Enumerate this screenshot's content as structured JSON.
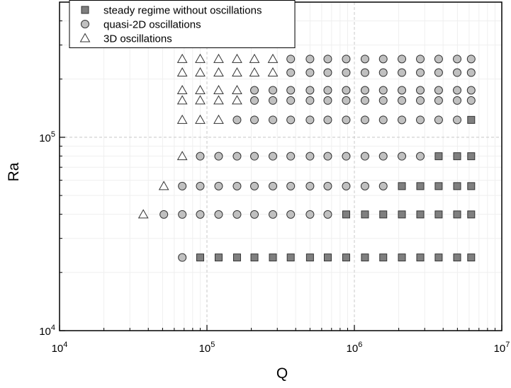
{
  "chart_data": {
    "type": "scatter",
    "title": "",
    "xlabel": "Q",
    "ylabel": "Ra",
    "xscale": "log",
    "yscale": "log",
    "xlim": [
      10000,
      10000000
    ],
    "ylim": [
      10000,
      500000
    ],
    "x_ticks": [
      {
        "value": 10000,
        "base": "10",
        "exp": "4"
      },
      {
        "value": 100000,
        "base": "10",
        "exp": "5"
      },
      {
        "value": 1000000,
        "base": "10",
        "exp": "6"
      },
      {
        "value": 10000000,
        "base": "10",
        "exp": "7"
      }
    ],
    "y_ticks": [
      {
        "value": 10000,
        "base": "10",
        "exp": "4"
      },
      {
        "value": 100000,
        "base": "10",
        "exp": "5"
      }
    ],
    "grid": true,
    "legend_position": "top-left",
    "series": [
      {
        "name": "steady regime without oscillations",
        "marker": "square",
        "color": "#7f7f7f",
        "points": [
          [
            90000,
            23900
          ],
          [
            120000,
            23900
          ],
          [
            160000,
            23900
          ],
          [
            210000,
            23900
          ],
          [
            280000,
            23900
          ],
          [
            370000,
            23900
          ],
          [
            500000,
            23900
          ],
          [
            660000,
            23900
          ],
          [
            880000,
            23900
          ],
          [
            1180000,
            23900
          ],
          [
            1570000,
            23900
          ],
          [
            2100000,
            23900
          ],
          [
            2800000,
            23900
          ],
          [
            3730000,
            23900
          ],
          [
            4980000,
            23900
          ],
          [
            6200000,
            23900
          ],
          [
            880000,
            39900
          ],
          [
            1180000,
            39900
          ],
          [
            1570000,
            39900
          ],
          [
            2100000,
            39900
          ],
          [
            2800000,
            39900
          ],
          [
            3730000,
            39900
          ],
          [
            4980000,
            39900
          ],
          [
            6200000,
            39900
          ],
          [
            2100000,
            55900
          ],
          [
            2800000,
            55900
          ],
          [
            3730000,
            55900
          ],
          [
            4980000,
            55900
          ],
          [
            6200000,
            55900
          ],
          [
            3730000,
            79800
          ],
          [
            4980000,
            79800
          ],
          [
            6200000,
            79800
          ],
          [
            6200000,
            123000
          ]
        ]
      },
      {
        "name": "quasi-2D oscillations",
        "marker": "circle",
        "color": "#c0c0c0",
        "points": [
          [
            68000,
            23900
          ],
          [
            51000,
            39900
          ],
          [
            68000,
            39900
          ],
          [
            90000,
            39900
          ],
          [
            120000,
            39900
          ],
          [
            160000,
            39900
          ],
          [
            210000,
            39900
          ],
          [
            280000,
            39900
          ],
          [
            370000,
            39900
          ],
          [
            500000,
            39900
          ],
          [
            660000,
            39900
          ],
          [
            68000,
            55900
          ],
          [
            90000,
            55900
          ],
          [
            120000,
            55900
          ],
          [
            160000,
            55900
          ],
          [
            210000,
            55900
          ],
          [
            280000,
            55900
          ],
          [
            370000,
            55900
          ],
          [
            500000,
            55900
          ],
          [
            660000,
            55900
          ],
          [
            880000,
            55900
          ],
          [
            1180000,
            55900
          ],
          [
            1570000,
            55900
          ],
          [
            90000,
            79800
          ],
          [
            120000,
            79800
          ],
          [
            160000,
            79800
          ],
          [
            210000,
            79800
          ],
          [
            280000,
            79800
          ],
          [
            370000,
            79800
          ],
          [
            500000,
            79800
          ],
          [
            660000,
            79800
          ],
          [
            880000,
            79800
          ],
          [
            1180000,
            79800
          ],
          [
            1570000,
            79800
          ],
          [
            2100000,
            79800
          ],
          [
            2800000,
            79800
          ],
          [
            160000,
            123000
          ],
          [
            210000,
            123000
          ],
          [
            280000,
            123000
          ],
          [
            370000,
            123000
          ],
          [
            500000,
            123000
          ],
          [
            660000,
            123000
          ],
          [
            880000,
            123000
          ],
          [
            1180000,
            123000
          ],
          [
            1570000,
            123000
          ],
          [
            2100000,
            123000
          ],
          [
            2800000,
            123000
          ],
          [
            3730000,
            123000
          ],
          [
            4980000,
            123000
          ],
          [
            210000,
            155000
          ],
          [
            280000,
            155000
          ],
          [
            370000,
            155000
          ],
          [
            500000,
            155000
          ],
          [
            660000,
            155000
          ],
          [
            880000,
            155000
          ],
          [
            1180000,
            155000
          ],
          [
            1570000,
            155000
          ],
          [
            2100000,
            155000
          ],
          [
            2800000,
            155000
          ],
          [
            3730000,
            155000
          ],
          [
            4980000,
            155000
          ],
          [
            6200000,
            155000
          ],
          [
            210000,
            175000
          ],
          [
            280000,
            175000
          ],
          [
            370000,
            175000
          ],
          [
            500000,
            175000
          ],
          [
            660000,
            175000
          ],
          [
            880000,
            175000
          ],
          [
            1180000,
            175000
          ],
          [
            1570000,
            175000
          ],
          [
            2100000,
            175000
          ],
          [
            2800000,
            175000
          ],
          [
            3730000,
            175000
          ],
          [
            4980000,
            175000
          ],
          [
            6200000,
            175000
          ],
          [
            370000,
            216000
          ],
          [
            500000,
            216000
          ],
          [
            660000,
            216000
          ],
          [
            880000,
            216000
          ],
          [
            1180000,
            216000
          ],
          [
            1570000,
            216000
          ],
          [
            2100000,
            216000
          ],
          [
            2800000,
            216000
          ],
          [
            3730000,
            216000
          ],
          [
            4980000,
            216000
          ],
          [
            6200000,
            216000
          ],
          [
            370000,
            254000
          ],
          [
            500000,
            254000
          ],
          [
            660000,
            254000
          ],
          [
            880000,
            254000
          ],
          [
            1180000,
            254000
          ],
          [
            1570000,
            254000
          ],
          [
            2100000,
            254000
          ],
          [
            2800000,
            254000
          ],
          [
            3730000,
            254000
          ],
          [
            4980000,
            254000
          ],
          [
            6200000,
            254000
          ]
        ]
      },
      {
        "name": "3D oscillations",
        "marker": "triangle",
        "color": "#ffffff",
        "points": [
          [
            37000,
            39900
          ],
          [
            51000,
            55900
          ],
          [
            68000,
            79800
          ],
          [
            68000,
            123000
          ],
          [
            90000,
            123000
          ],
          [
            120000,
            123000
          ],
          [
            68000,
            155000
          ],
          [
            90000,
            155000
          ],
          [
            120000,
            155000
          ],
          [
            160000,
            155000
          ],
          [
            68000,
            175000
          ],
          [
            90000,
            175000
          ],
          [
            120000,
            175000
          ],
          [
            160000,
            175000
          ],
          [
            68000,
            216000
          ],
          [
            90000,
            216000
          ],
          [
            120000,
            216000
          ],
          [
            160000,
            216000
          ],
          [
            210000,
            216000
          ],
          [
            280000,
            216000
          ],
          [
            68000,
            254000
          ],
          [
            90000,
            254000
          ],
          [
            120000,
            254000
          ],
          [
            160000,
            254000
          ],
          [
            210000,
            254000
          ],
          [
            280000,
            254000
          ]
        ]
      }
    ]
  }
}
